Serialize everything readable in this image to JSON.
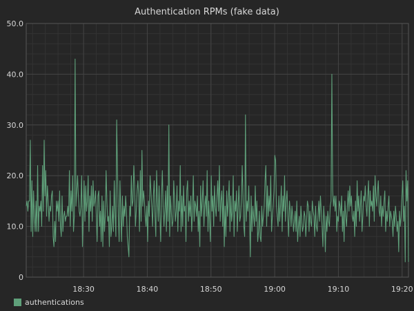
{
  "chart_data": {
    "type": "line",
    "title": "Authentication RPMs (fake data)",
    "xlabel": "",
    "ylabel": "",
    "x_ticks": [
      "18:30",
      "18:40",
      "18:50",
      "19:00",
      "19:10",
      "19:20"
    ],
    "y_ticks": [
      "0",
      "10.0",
      "20.0",
      "30.0",
      "40.0",
      "50.0"
    ],
    "ylim": [
      0,
      50
    ],
    "xlim": [
      "18:21",
      "19:21"
    ],
    "grid": true,
    "legend": "bottom-left",
    "colors": {
      "background": "#262626",
      "grid": "#444444",
      "axis": "#555555",
      "text": "#d8d8d8",
      "series": "#5fa07a"
    },
    "series": [
      {
        "name": "authentications",
        "values": [
          14,
          15,
          13,
          15,
          15,
          27,
          9,
          19,
          8,
          17,
          12,
          9,
          15,
          9,
          22,
          9,
          14,
          13,
          15,
          10,
          22,
          13,
          27,
          16,
          21,
          12,
          18,
          15,
          11,
          14,
          13,
          16,
          17,
          8,
          6,
          11,
          7,
          15,
          13,
          15,
          11,
          17,
          10,
          8,
          16,
          9,
          12,
          13,
          11,
          12,
          12,
          14,
          12,
          21,
          10,
          17,
          13,
          20,
          9,
          12,
          43,
          14,
          17,
          20,
          16,
          13,
          12,
          14,
          20,
          6,
          13,
          19,
          11,
          18,
          13,
          15,
          20,
          9,
          16,
          13,
          18,
          11,
          19,
          14,
          15,
          17,
          12,
          7,
          16,
          17,
          10,
          13,
          7,
          16,
          6,
          15,
          9,
          12,
          21,
          15,
          11,
          12,
          6,
          17,
          8,
          10,
          14,
          9,
          19,
          13,
          8,
          31,
          21,
          12,
          7,
          19,
          13,
          7,
          16,
          10,
          14,
          12,
          16,
          13,
          8,
          6,
          4,
          14,
          12,
          20,
          14,
          15,
          22,
          18,
          10,
          13,
          17,
          19,
          16,
          9,
          21,
          11,
          25,
          14,
          17,
          15,
          12,
          10,
          14,
          7,
          15,
          12,
          20,
          17,
          14,
          10,
          16,
          19,
          12,
          8,
          21,
          15,
          11,
          18,
          12,
          7,
          16,
          21,
          14,
          10,
          13,
          17,
          9,
          18,
          11,
          30,
          8,
          16,
          13,
          10,
          11,
          19,
          15,
          11,
          13,
          18,
          9,
          15,
          13,
          22,
          9,
          16,
          10,
          18,
          13,
          14,
          7,
          17,
          19,
          11,
          15,
          12,
          16,
          9,
          13,
          20,
          11,
          15,
          14,
          12,
          16,
          9,
          13,
          6,
          18,
          12,
          15,
          19,
          10,
          14,
          16,
          12,
          21,
          9,
          15,
          11,
          7,
          20,
          13,
          16,
          10,
          18,
          14,
          12,
          16,
          19,
          13,
          22,
          11,
          15,
          17,
          10,
          18,
          6,
          14,
          8,
          17,
          12,
          15,
          19,
          9,
          16,
          11,
          13,
          20,
          8,
          15,
          13,
          17,
          9,
          14,
          18,
          11,
          12,
          15,
          22,
          16,
          10,
          8,
          32,
          11,
          15,
          13,
          18,
          12,
          4,
          16,
          9,
          14,
          12,
          10,
          18,
          11,
          15,
          7,
          9,
          13,
          8,
          7,
          14,
          10,
          12,
          14,
          19,
          22,
          10,
          18,
          12,
          16,
          13,
          20,
          9,
          12,
          14,
          17,
          24,
          23,
          14,
          12,
          10,
          16,
          11,
          14,
          18,
          9,
          16,
          13,
          20,
          11,
          15,
          17,
          12,
          8,
          15,
          13,
          10,
          14,
          12,
          9,
          11,
          13,
          9,
          15,
          7,
          10,
          12,
          8,
          14,
          11,
          9,
          10,
          13,
          12,
          8,
          11,
          15,
          14,
          9,
          13,
          11,
          10,
          15,
          13,
          12,
          8,
          14,
          10,
          9,
          12,
          15,
          11,
          16,
          13,
          10,
          6,
          14,
          11,
          5,
          12,
          9,
          13,
          11,
          10,
          14,
          15,
          40,
          17,
          14,
          16,
          13,
          16,
          9,
          12,
          11,
          15,
          14,
          12,
          16,
          9,
          13,
          7,
          15,
          12,
          10,
          14,
          17,
          13,
          18,
          14,
          16,
          12,
          11,
          13,
          8,
          15,
          10,
          19,
          13,
          16,
          11,
          14,
          17,
          9,
          12,
          16,
          15,
          18,
          14,
          12,
          16,
          19,
          10,
          17,
          14,
          15,
          13,
          18,
          11,
          20,
          16,
          14,
          17,
          19,
          13,
          12,
          16,
          10,
          14,
          12,
          15,
          17,
          9,
          13,
          11,
          14,
          16,
          10,
          13,
          12,
          11,
          8,
          13,
          10,
          14,
          12,
          9,
          11,
          5,
          13,
          10,
          12,
          16,
          19,
          11,
          14,
          3,
          21,
          15,
          19,
          3
        ]
      }
    ]
  }
}
